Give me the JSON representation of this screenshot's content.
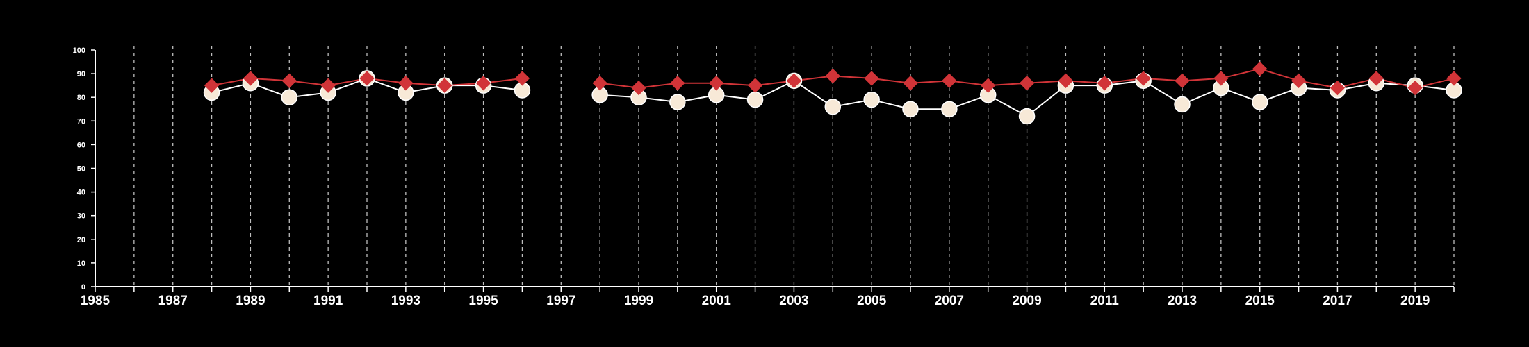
{
  "chart_data": {
    "type": "line",
    "title": "",
    "xlabel": "",
    "ylabel": "",
    "xlim": [
      1985,
      2020
    ],
    "ylim": [
      0,
      100
    ],
    "x_ticks": [
      "1985",
      "1987",
      "1989",
      "1991",
      "1993",
      "1995",
      "1997",
      "1999",
      "2001",
      "2003",
      "2005",
      "2007",
      "2009",
      "2011",
      "2013",
      "2015",
      "2017",
      "2019"
    ],
    "y_ticks": [
      "0",
      "10",
      "20",
      "30",
      "40",
      "50",
      "60",
      "70",
      "80",
      "90",
      "100"
    ],
    "grid": "vertical dashed lines at each year",
    "legend": "none",
    "series": [
      {
        "marker": "diamond",
        "color": "#d13438",
        "segments": [
          {
            "x": [
              1988,
              1989,
              1990,
              1991,
              1992,
              1993,
              1994,
              1995,
              1996
            ],
            "y": [
              85,
              88,
              87,
              85,
              88,
              86,
              85,
              86,
              88
            ]
          },
          {
            "x": [
              1998,
              1999,
              2000,
              2001,
              2002,
              2003,
              2004,
              2005,
              2006,
              2007,
              2008,
              2009,
              2010,
              2011,
              2012,
              2013,
              2014,
              2015,
              2016,
              2017,
              2018,
              2019,
              2020
            ],
            "y": [
              86,
              84,
              86,
              86,
              85,
              87,
              89,
              88,
              86,
              87,
              85,
              86,
              87,
              86,
              88,
              87,
              88,
              92,
              87,
              84,
              88,
              84,
              88
            ]
          }
        ]
      },
      {
        "marker": "circle",
        "color": "#f7e9d7",
        "segments": [
          {
            "x": [
              1988,
              1989,
              1990,
              1991,
              1992,
              1993,
              1994,
              1995,
              1996
            ],
            "y": [
              82,
              86,
              80,
              82,
              88,
              82,
              85,
              85,
              83
            ]
          },
          {
            "x": [
              1998,
              1999,
              2000,
              2001,
              2002,
              2003,
              2004,
              2005,
              2006,
              2007,
              2008,
              2009,
              2010,
              2011,
              2012,
              2013,
              2014,
              2015,
              2016,
              2017,
              2018,
              2019,
              2020
            ],
            "y": [
              81,
              80,
              78,
              81,
              79,
              87,
              76,
              79,
              75,
              75,
              81,
              72,
              85,
              85,
              87,
              77,
              84,
              78,
              84,
              83,
              86,
              85,
              83
            ]
          }
        ]
      }
    ]
  }
}
